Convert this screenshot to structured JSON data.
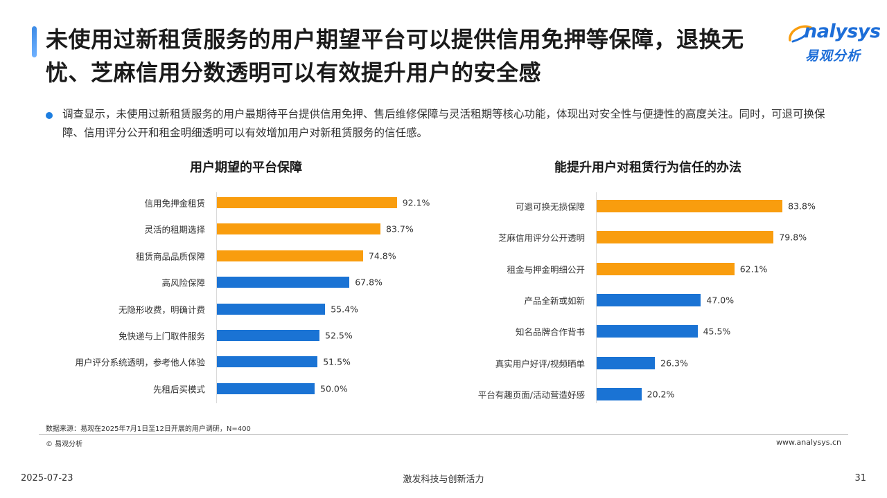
{
  "header": {
    "title": "未使用过新租赁服务的用户期望平台可以提供信用免押等保障，退换无忧、芝麻信用分数透明可以有效提升用户的安全感",
    "logo_text": "nalysys",
    "logo_cn": "易观分析"
  },
  "summary": "调查显示，未使用过新租赁服务的用户最期待平台提供信用免押、售后维修保障与灵活租期等核心功能，体现出对安全性与便捷性的高度关注。同时，可退可换保障、信用评分公开和租金明细透明可以有效增加用户对新租赁服务的信任感。",
  "chart_data": [
    {
      "type": "bar",
      "orientation": "horizontal",
      "title": "用户期望的平台保障",
      "categories": [
        "信用免押金租赁",
        "灵活的租期选择",
        "租赁商品品质保障",
        "高风险保障",
        "无隐形收费，明确计费",
        "免快递与上门取件服务",
        "用户评分系统透明，参考他人体验",
        "先租后买模式"
      ],
      "values": [
        92.1,
        83.7,
        74.8,
        67.8,
        55.4,
        52.5,
        51.5,
        50.0
      ],
      "value_labels": [
        "92.1%",
        "83.7%",
        "74.8%",
        "67.8%",
        "55.4%",
        "52.5%",
        "51.5%",
        "50.0%"
      ],
      "bar_colors": [
        "#f99d0e",
        "#f99d0e",
        "#f99d0e",
        "#1a73d4",
        "#1a73d4",
        "#1a73d4",
        "#1a73d4",
        "#1a73d4"
      ],
      "xlim": [
        0,
        100
      ],
      "grid": false
    },
    {
      "type": "bar",
      "orientation": "horizontal",
      "title": "能提升用户对租赁行为信任的办法",
      "categories": [
        "可退可换无损保障",
        "芝麻信用评分公开透明",
        "租金与押金明细公开",
        "产品全新或如新",
        "知名品牌合作背书",
        "真实用户好评/视频晒单",
        "平台有趣页面/活动营造好感"
      ],
      "values": [
        83.8,
        79.8,
        62.1,
        47.0,
        45.5,
        26.3,
        20.2
      ],
      "value_labels": [
        "83.8%",
        "79.8%",
        "62.1%",
        "47.0%",
        "45.5%",
        "26.3%",
        "20.2%"
      ],
      "bar_colors": [
        "#f99d0e",
        "#f99d0e",
        "#f99d0e",
        "#1a73d4",
        "#1a73d4",
        "#1a73d4",
        "#1a73d4"
      ],
      "xlim": [
        0,
        100
      ],
      "grid": false
    }
  ],
  "source_note": "数据来源：易观在2025年7月1日至12日开展的用户调研，N=400",
  "copyright": "© 易观分析",
  "website": "www.analysys.cn",
  "footer": {
    "date": "2025-07-23",
    "slogan": "激发科技与创新活力",
    "page": "31"
  }
}
